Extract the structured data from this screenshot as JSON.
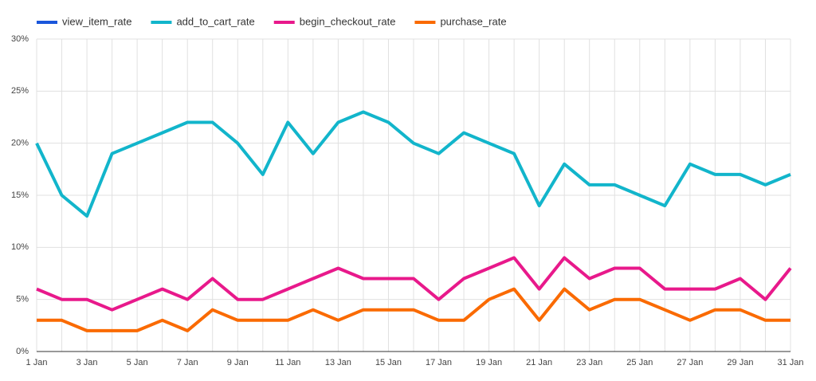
{
  "chart_data": {
    "type": "line",
    "categories": [
      "1 Jan",
      null,
      "3 Jan",
      null,
      "5 Jan",
      null,
      "7 Jan",
      null,
      "9 Jan",
      null,
      "11 Jan",
      null,
      "13 Jan",
      null,
      "15 Jan",
      null,
      "17 Jan",
      null,
      "19 Jan",
      null,
      "21 Jan",
      null,
      "23 Jan",
      null,
      "25 Jan",
      null,
      "27 Jan",
      null,
      "29 Jan",
      null,
      "31 Jan"
    ],
    "series": [
      {
        "name": "view_item_rate",
        "color": "#1a56db",
        "values": [
          null,
          null,
          null,
          null,
          null,
          null,
          null,
          null,
          null,
          null,
          null,
          null,
          null,
          null,
          null,
          null,
          null,
          null,
          null,
          null,
          null,
          null,
          null,
          null,
          null,
          null,
          null,
          null,
          null,
          null,
          null
        ]
      },
      {
        "name": "add_to_cart_rate",
        "color": "#12b5cb",
        "values": [
          20,
          15,
          13,
          19,
          20,
          21,
          22,
          22,
          20,
          17,
          22,
          19,
          22,
          23,
          22,
          20,
          19,
          21,
          20,
          19,
          14,
          18,
          16,
          16,
          15,
          14,
          18,
          17,
          17,
          16,
          17
        ]
      },
      {
        "name": "begin_checkout_rate",
        "color": "#e8198b",
        "values": [
          6,
          5,
          5,
          4,
          5,
          6,
          5,
          7,
          5,
          5,
          6,
          7,
          8,
          7,
          7,
          7,
          5,
          7,
          8,
          9,
          6,
          9,
          7,
          8,
          8,
          6,
          6,
          6,
          7,
          5,
          8
        ]
      },
      {
        "name": "purchase_rate",
        "color": "#fa6a00",
        "values": [
          3,
          3,
          2,
          2,
          2,
          3,
          2,
          4,
          3,
          3,
          3,
          4,
          3,
          4,
          4,
          4,
          3,
          3,
          5,
          6,
          3,
          6,
          4,
          5,
          5,
          4,
          3,
          4,
          4,
          3,
          3
        ]
      }
    ],
    "ylim": [
      0,
      30
    ],
    "yticks": [
      {
        "value": 0,
        "label": "0%"
      },
      {
        "value": 5,
        "label": "5%"
      },
      {
        "value": 10,
        "label": "10%"
      },
      {
        "value": 15,
        "label": "15%"
      },
      {
        "value": 20,
        "label": "20%"
      },
      {
        "value": 25,
        "label": "25%"
      },
      {
        "value": 30,
        "label": "30%"
      }
    ],
    "grid": true,
    "legend": "top"
  }
}
